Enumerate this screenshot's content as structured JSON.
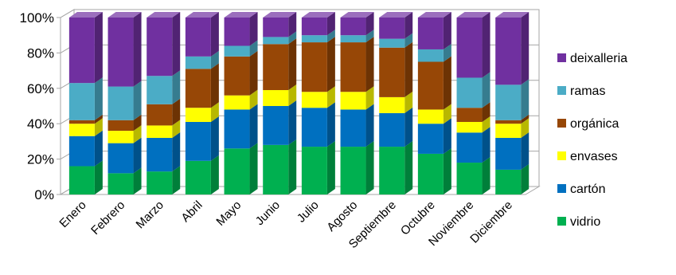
{
  "chart_data": {
    "type": "bar",
    "stacking": "percent",
    "three_d": true,
    "categories": [
      "Enero",
      "Febrero",
      "Marzo",
      "Abril",
      "Mayo",
      "Junio",
      "Julio",
      "Agosto",
      "Septiembre",
      "Octubre",
      "Noviembre",
      "Diciembre"
    ],
    "series": [
      {
        "name": "vidrio",
        "color": "#00b050",
        "values": [
          16,
          12,
          13,
          19,
          26,
          28,
          27,
          27,
          27,
          23,
          18,
          14
        ]
      },
      {
        "name": "cartón",
        "color": "#0070c0",
        "values": [
          17,
          17,
          19,
          22,
          22,
          22,
          22,
          21,
          19,
          17,
          17,
          18
        ]
      },
      {
        "name": "envases",
        "color": "#ffff00",
        "values": [
          7,
          7,
          7,
          8,
          8,
          9,
          9,
          10,
          9,
          8,
          6,
          8
        ]
      },
      {
        "name": "orgánica",
        "color": "#974706",
        "values": [
          2,
          6,
          12,
          22,
          22,
          26,
          28,
          28,
          28,
          27,
          8,
          2
        ]
      },
      {
        "name": "ramas",
        "color": "#4bacc6",
        "values": [
          21,
          19,
          16,
          7,
          6,
          4,
          4,
          4,
          5,
          7,
          17,
          20
        ]
      },
      {
        "name": "deixalleria",
        "color": "#7030a0",
        "values": [
          37,
          39,
          33,
          22,
          16,
          11,
          10,
          10,
          12,
          18,
          34,
          38
        ]
      }
    ],
    "y_ticks": [
      "0%",
      "20%",
      "40%",
      "60%",
      "80%",
      "100%"
    ],
    "ylim": [
      0,
      100
    ],
    "grid": true,
    "legend_position": "right"
  }
}
